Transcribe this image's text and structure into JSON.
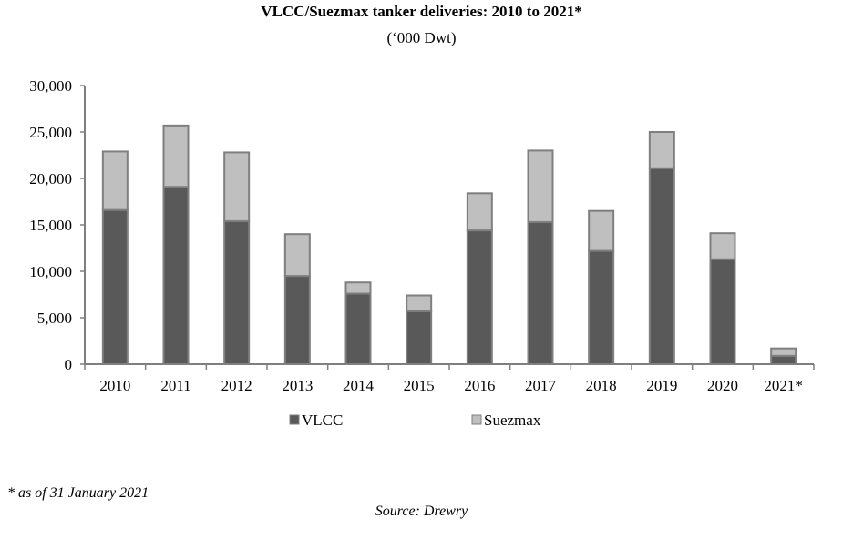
{
  "chart_data": {
    "type": "bar",
    "stacked": true,
    "title": "VLCC/Suezmax tanker deliveries: 2010 to 2021*",
    "subtitle": "(‘000 Dwt)",
    "xlabel": "",
    "ylabel": "",
    "categories": [
      "2010",
      "2011",
      "2012",
      "2013",
      "2014",
      "2015",
      "2016",
      "2017",
      "2018",
      "2019",
      "2020",
      "2021*"
    ],
    "series": [
      {
        "name": "VLCC",
        "color": "#595959",
        "values": [
          16600,
          19100,
          15400,
          9500,
          7600,
          5700,
          14400,
          15300,
          12200,
          21100,
          11300,
          900
        ]
      },
      {
        "name": "Suezmax",
        "color": "#bfbfbf",
        "values": [
          6300,
          6600,
          7400,
          4500,
          1200,
          1700,
          4000,
          7700,
          4300,
          3900,
          2800,
          800
        ]
      }
    ],
    "ylim": [
      0,
      30000
    ],
    "yticks": [
      0,
      5000,
      10000,
      15000,
      20000,
      25000,
      30000
    ],
    "ytick_labels": [
      "0",
      "5,000",
      "10,000",
      "15,000",
      "20,000",
      "25,000",
      "30,000"
    ],
    "grid": false,
    "legend_position": "bottom",
    "bar_border_color": "#7f7f7f"
  },
  "footnote": "* as of 31 January 2021",
  "source": "Source: Drewry"
}
